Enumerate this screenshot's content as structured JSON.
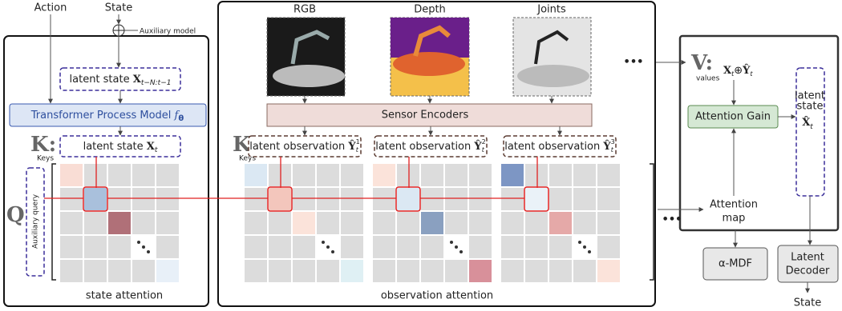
{
  "inputs": {
    "action": "Action",
    "state": "State",
    "auxiliary_model": "Auxiliary model"
  },
  "state_panel": {
    "latent_history": {
      "text": "latent state ",
      "symbol": "X",
      "subscript": "t−N:t−1"
    },
    "process_model": {
      "text": "Transformer Process Model ",
      "symbol": "f",
      "subscript": "θ"
    },
    "keys": {
      "symbol": "K:",
      "label": "Keys"
    },
    "latent_state": {
      "text": "latent state ",
      "symbol": "X",
      "subscript": "t"
    },
    "query": {
      "symbol": "Q",
      "label": "Auxiliary query"
    },
    "caption": "state attention"
  },
  "observation_panel": {
    "sensors": [
      "RGB",
      "Depth",
      "Joints"
    ],
    "more_sensors": "•••",
    "encoders": "Sensor Encoders",
    "keys": {
      "symbol": "K:",
      "label": "Keys"
    },
    "latent_observations": [
      {
        "text": "latent observation ",
        "symbol": "Ŷ",
        "subscript": "t",
        "superscript": "1"
      },
      {
        "text": "latent observation ",
        "symbol": "Ŷ",
        "subscript": "t",
        "superscript": "2"
      },
      {
        "text": "latent observation ",
        "symbol": "Ŷ",
        "subscript": "t",
        "superscript": "3"
      }
    ],
    "more_grids": "•••",
    "caption": "observation attention"
  },
  "values_panel": {
    "symbol": "V:",
    "label": "values",
    "expression": {
      "a": "X",
      "a_sub": "t",
      "op": "⊕",
      "b": "Ŷ",
      "b_sub": "t"
    },
    "attention_gain": "Attention Gain",
    "latent_state": {
      "line1": "latent",
      "line2": "state",
      "symbol": "X̂",
      "subscript": "t"
    },
    "attention_map": [
      "Attention",
      "map"
    ]
  },
  "outputs": {
    "mdf": "α-MDF",
    "decoder": [
      "Latent",
      "Decoder"
    ],
    "state": "State"
  }
}
